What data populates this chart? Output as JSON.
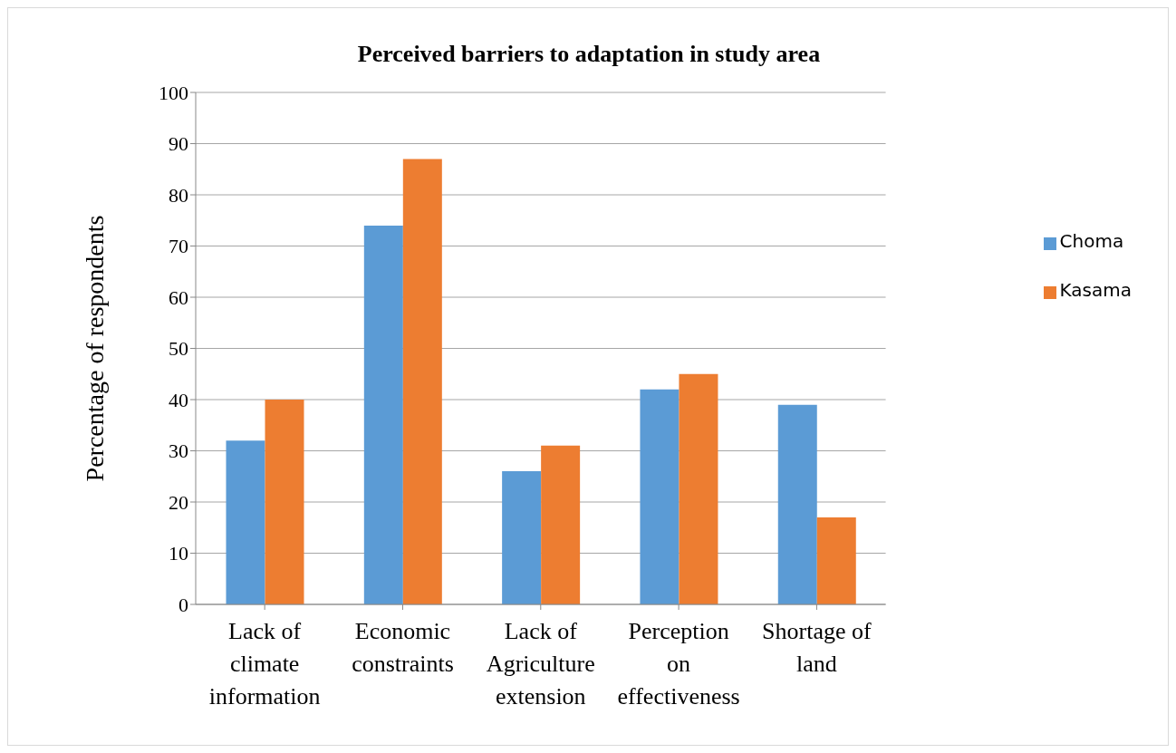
{
  "chart_data": {
    "type": "bar",
    "title": "Perceived barriers to adaptation in study area",
    "ylabel": "Percentage of respondents",
    "categories": [
      "Lack of climate information",
      "Economic constraints",
      "Lack of Agriculture extension",
      "Perception on effectiveness",
      "Shortage of land"
    ],
    "series": [
      {
        "name": "Choma",
        "color": "#5b9bd5",
        "values": [
          32,
          74,
          26,
          42,
          39
        ]
      },
      {
        "name": "Kasama",
        "color": "#ed7d31",
        "values": [
          40,
          87,
          31,
          45,
          17
        ]
      }
    ],
    "ylim": [
      0,
      100
    ],
    "yticks": [
      0,
      10,
      20,
      30,
      40,
      50,
      60,
      70,
      80,
      90,
      100
    ],
    "grid": "y",
    "legend": "right"
  }
}
